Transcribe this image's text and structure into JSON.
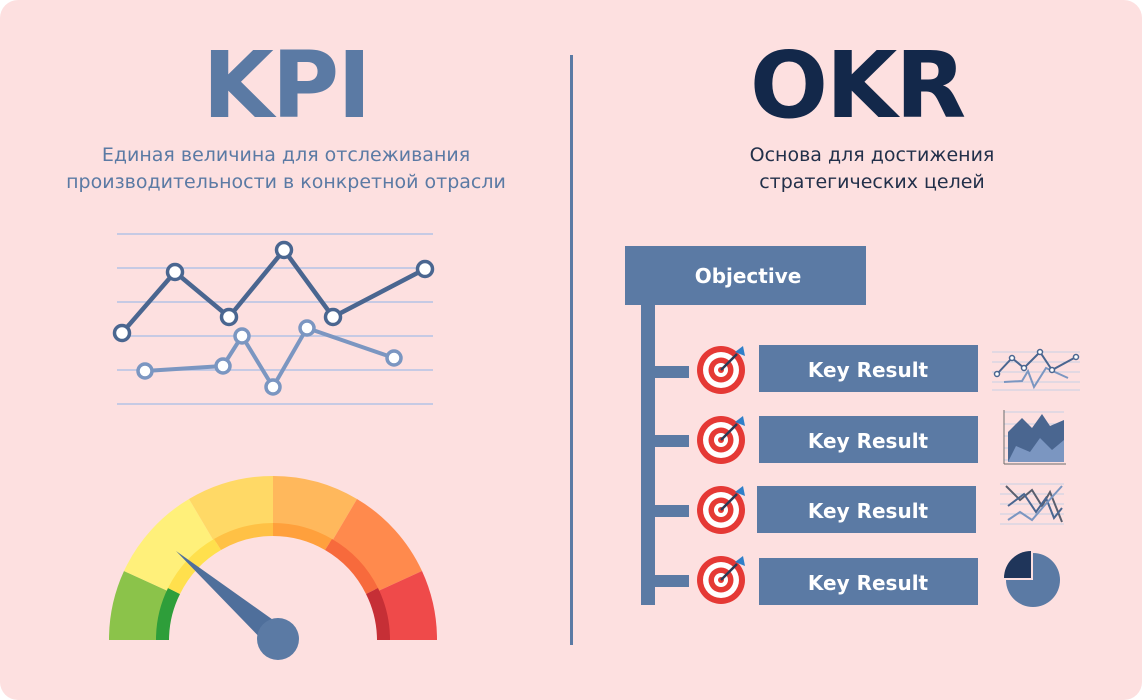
{
  "kpi": {
    "title": "KPI",
    "subtitle_line1": "Единая величина для отслеживания",
    "subtitle_line2": "производительности в конкретной отрасли"
  },
  "okr": {
    "title": "OKR",
    "subtitle_line1": "Основа для достижения",
    "subtitle_line2": "стратегических целей",
    "objective_label": "Objective",
    "key_results": [
      {
        "label": "Key Result",
        "icon": "line-chart-icon"
      },
      {
        "label": "Key Result",
        "icon": "area-chart-icon"
      },
      {
        "label": "Key Result",
        "icon": "zigzag-chart-icon"
      },
      {
        "label": "Key Result",
        "icon": "pie-chart-icon"
      }
    ]
  },
  "colors": {
    "background": "#fde0e0",
    "accent_blue": "#5b7aa4",
    "dark_navy": "#13284a",
    "target_red": "#e53935",
    "gauge_green": "#8bc34a",
    "gauge_yellow": "#ffe066",
    "gauge_orange": "#ffa94d",
    "gauge_red": "#ef4444"
  },
  "gauge": {
    "level": 0.22
  }
}
